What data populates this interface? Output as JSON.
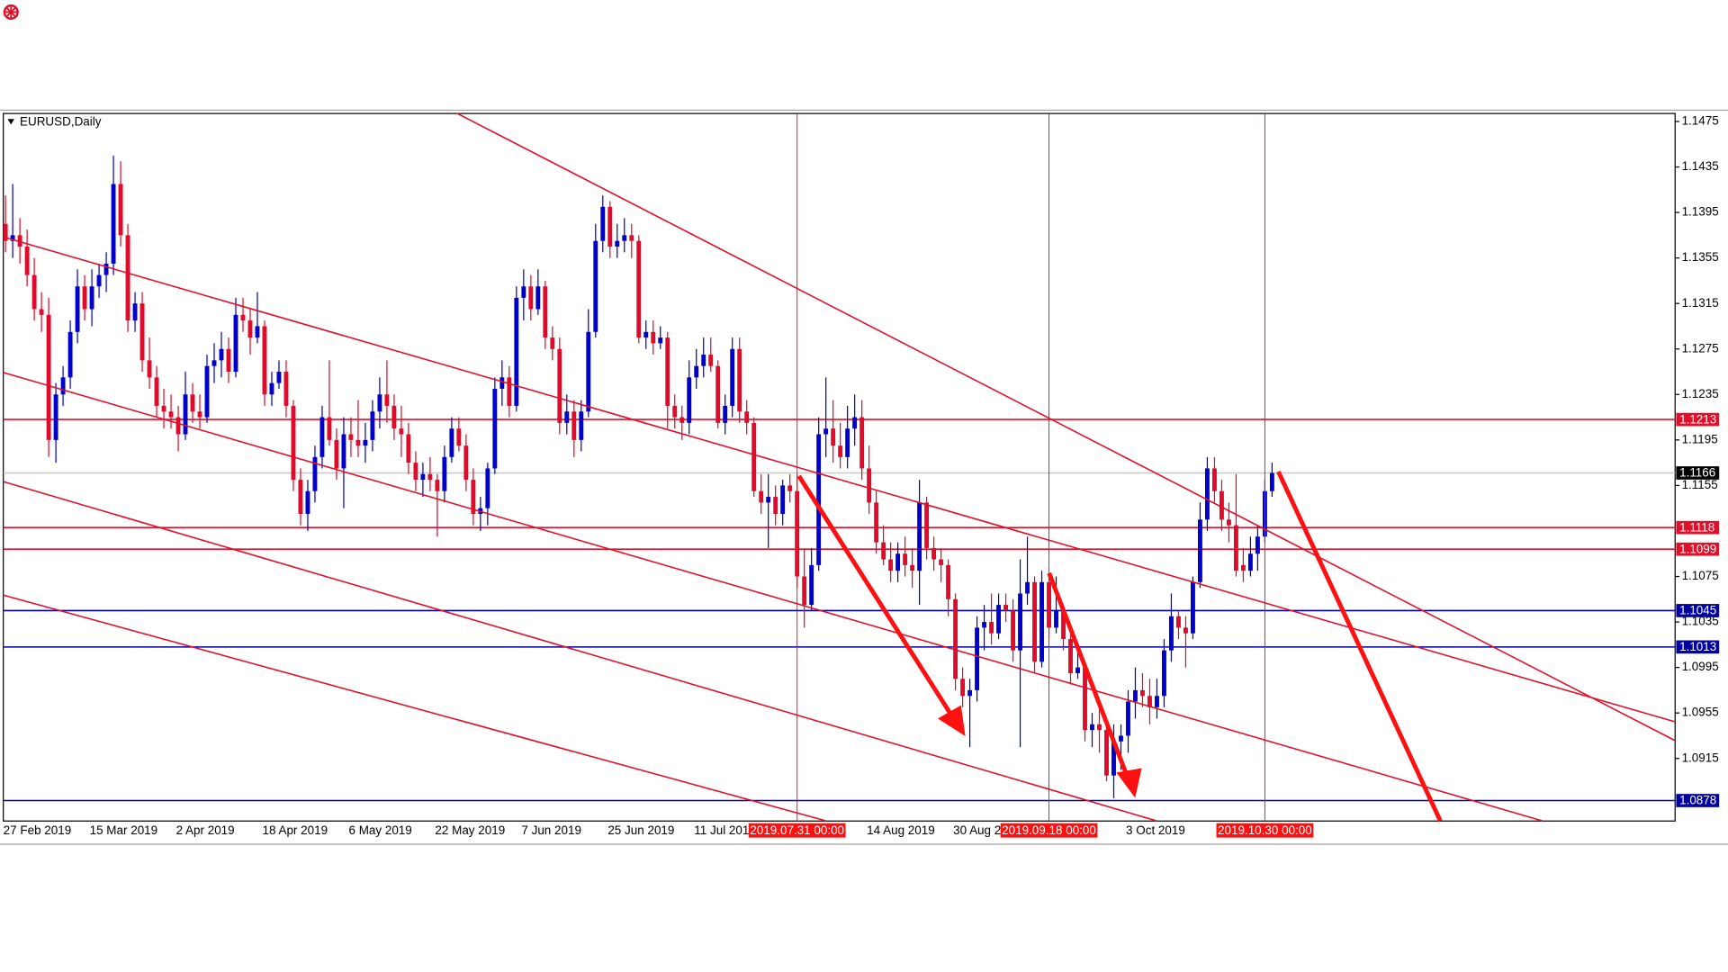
{
  "chart_data": {
    "type": "candlestick",
    "title": "EURUSD,Daily",
    "up_color": "#0000cc",
    "down_color": "#e00a2a",
    "grid": false,
    "ylim": [
      1.086,
      1.1482
    ],
    "yticks": [
      1.1475,
      1.1435,
      1.1395,
      1.1355,
      1.1315,
      1.1275,
      1.1235,
      1.1195,
      1.1155,
      1.1075,
      1.1035,
      1.0995,
      1.0955,
      1.0915
    ],
    "hlines": [
      {
        "value": 1.1213,
        "color": "#e0102a"
      },
      {
        "value": 1.1166,
        "color": "#000000",
        "line_color": "#c8c8c8"
      },
      {
        "value": 1.1118,
        "color": "#e0102a"
      },
      {
        "value": 1.1099,
        "color": "#e0102a"
      },
      {
        "value": 1.1045,
        "color": "#0000a0"
      },
      {
        "value": 1.1013,
        "color": "#0000a0"
      },
      {
        "value": 1.0878,
        "color": "#0000a0"
      }
    ],
    "vlines": [
      {
        "index": 110,
        "label": "2019.07.31 00:00",
        "color": "#ff1010"
      },
      {
        "index": 145,
        "label": "2019.09.18 00:00",
        "color": "#ff1010"
      },
      {
        "index": 175,
        "label": "2019.10.30 00:00",
        "color": "#ff1010"
      }
    ],
    "categories": [
      "27 Feb 2019",
      null,
      null,
      null,
      null,
      null,
      null,
      null,
      null,
      null,
      null,
      null,
      "15 Mar 2019",
      null,
      null,
      null,
      null,
      null,
      null,
      null,
      null,
      null,
      null,
      null,
      "2 Apr 2019",
      null,
      null,
      null,
      null,
      null,
      null,
      null,
      null,
      null,
      null,
      null,
      "18 Apr 2019",
      null,
      null,
      null,
      null,
      null,
      null,
      null,
      null,
      null,
      null,
      null,
      "6 May 2019",
      null,
      null,
      null,
      null,
      null,
      null,
      null,
      null,
      null,
      null,
      null,
      "22 May 2019",
      null,
      null,
      null,
      null,
      null,
      null,
      null,
      null,
      null,
      null,
      null,
      "7 Jun 2019",
      null,
      null,
      null,
      null,
      null,
      null,
      null,
      null,
      null,
      null,
      null,
      "25 Jun 2019",
      null,
      null,
      null,
      null,
      null,
      null,
      null,
      null,
      null,
      null,
      null,
      "11 Jul 2019",
      null,
      null,
      null,
      null,
      null,
      null,
      null,
      null,
      null,
      null,
      null,
      null,
      null,
      null,
      null,
      null,
      null,
      null,
      null,
      null,
      null,
      null,
      null,
      "14 Aug 2019",
      null,
      null,
      null,
      null,
      null,
      null,
      null,
      null,
      null,
      null,
      null,
      "30 Aug 2019",
      null,
      null,
      null,
      null,
      null,
      null,
      null,
      null,
      null,
      null,
      null,
      null,
      null,
      null,
      null,
      null,
      null,
      null,
      null,
      null,
      null,
      null,
      null,
      "3 Oct 2019",
      null,
      null,
      null,
      null,
      null,
      null,
      null,
      null,
      null,
      null,
      null,
      null,
      null,
      null,
      null,
      null,
      null,
      null,
      null,
      null
    ],
    "ohlc": [
      [
        1.1385,
        1.141,
        1.136,
        1.137
      ],
      [
        1.137,
        1.142,
        1.1355,
        1.1375
      ],
      [
        1.1375,
        1.139,
        1.135,
        1.1365
      ],
      [
        1.1365,
        1.138,
        1.133,
        1.134
      ],
      [
        1.134,
        1.1355,
        1.13,
        1.131
      ],
      [
        1.131,
        1.1325,
        1.129,
        1.1305
      ],
      [
        1.1305,
        1.132,
        1.118,
        1.1195
      ],
      [
        1.1195,
        1.1245,
        1.1175,
        1.1235
      ],
      [
        1.1235,
        1.126,
        1.1225,
        1.125
      ],
      [
        1.125,
        1.13,
        1.124,
        1.129
      ],
      [
        1.129,
        1.1345,
        1.128,
        1.133
      ],
      [
        1.133,
        1.134,
        1.13,
        1.131
      ],
      [
        1.131,
        1.1345,
        1.1295,
        1.133
      ],
      [
        1.133,
        1.135,
        1.132,
        1.134
      ],
      [
        1.134,
        1.136,
        1.1325,
        1.135
      ],
      [
        1.135,
        1.1445,
        1.134,
        1.142
      ],
      [
        1.142,
        1.144,
        1.1365,
        1.1375
      ],
      [
        1.1375,
        1.1385,
        1.129,
        1.13
      ],
      [
        1.13,
        1.1325,
        1.129,
        1.1315
      ],
      [
        1.1315,
        1.1325,
        1.1255,
        1.1265
      ],
      [
        1.1265,
        1.1285,
        1.124,
        1.125
      ],
      [
        1.125,
        1.126,
        1.1215,
        1.1225
      ],
      [
        1.1225,
        1.124,
        1.1205,
        1.122
      ],
      [
        1.122,
        1.1235,
        1.1205,
        1.1215
      ],
      [
        1.1215,
        1.1225,
        1.1185,
        1.12
      ],
      [
        1.12,
        1.1255,
        1.1195,
        1.1235
      ],
      [
        1.1235,
        1.1245,
        1.121,
        1.122
      ],
      [
        1.122,
        1.1235,
        1.1205,
        1.1215
      ],
      [
        1.1215,
        1.127,
        1.121,
        1.126
      ],
      [
        1.126,
        1.128,
        1.1245,
        1.1265
      ],
      [
        1.1265,
        1.129,
        1.125,
        1.1275
      ],
      [
        1.1275,
        1.1285,
        1.1245,
        1.1255
      ],
      [
        1.1255,
        1.132,
        1.125,
        1.1305
      ],
      [
        1.1305,
        1.132,
        1.129,
        1.13
      ],
      [
        1.13,
        1.131,
        1.127,
        1.1285
      ],
      [
        1.1285,
        1.1325,
        1.128,
        1.1295
      ],
      [
        1.1295,
        1.13,
        1.1225,
        1.1235
      ],
      [
        1.1235,
        1.1255,
        1.1225,
        1.1245
      ],
      [
        1.1245,
        1.1265,
        1.124,
        1.1255
      ],
      [
        1.1255,
        1.1265,
        1.1215,
        1.1225
      ],
      [
        1.1225,
        1.123,
        1.115,
        1.116
      ],
      [
        1.116,
        1.117,
        1.112,
        1.113
      ],
      [
        1.113,
        1.116,
        1.1115,
        1.115
      ],
      [
        1.115,
        1.119,
        1.114,
        1.118
      ],
      [
        1.118,
        1.1225,
        1.117,
        1.1215
      ],
      [
        1.1215,
        1.1265,
        1.119,
        1.1195
      ],
      [
        1.1195,
        1.1205,
        1.116,
        1.117
      ],
      [
        1.117,
        1.1215,
        1.1135,
        1.12
      ],
      [
        1.12,
        1.1215,
        1.118,
        1.1195
      ],
      [
        1.1195,
        1.123,
        1.118,
        1.119
      ],
      [
        1.119,
        1.121,
        1.1175,
        1.1195
      ],
      [
        1.1195,
        1.123,
        1.1185,
        1.122
      ],
      [
        1.122,
        1.125,
        1.1205,
        1.1235
      ],
      [
        1.1235,
        1.1265,
        1.121,
        1.1225
      ],
      [
        1.1225,
        1.1235,
        1.1195,
        1.1205
      ],
      [
        1.1205,
        1.1225,
        1.118,
        1.12
      ],
      [
        1.12,
        1.121,
        1.1165,
        1.1175
      ],
      [
        1.1175,
        1.1185,
        1.115,
        1.116
      ],
      [
        1.116,
        1.1175,
        1.1145,
        1.1165
      ],
      [
        1.1165,
        1.118,
        1.115,
        1.116
      ],
      [
        1.116,
        1.1165,
        1.111,
        1.115
      ],
      [
        1.115,
        1.119,
        1.114,
        1.118
      ],
      [
        1.118,
        1.1215,
        1.1175,
        1.1205
      ],
      [
        1.1205,
        1.1215,
        1.1185,
        1.119
      ],
      [
        1.119,
        1.12,
        1.115,
        1.116
      ],
      [
        1.116,
        1.117,
        1.112,
        1.113
      ],
      [
        1.113,
        1.1145,
        1.1115,
        1.1135
      ],
      [
        1.1135,
        1.1175,
        1.112,
        1.117
      ],
      [
        1.117,
        1.125,
        1.1165,
        1.124
      ],
      [
        1.124,
        1.1265,
        1.1225,
        1.125
      ],
      [
        1.125,
        1.126,
        1.1215,
        1.1225
      ],
      [
        1.1225,
        1.133,
        1.122,
        1.132
      ],
      [
        1.132,
        1.1345,
        1.13,
        1.133
      ],
      [
        1.133,
        1.134,
        1.13,
        1.131
      ],
      [
        1.131,
        1.1345,
        1.1305,
        1.133
      ],
      [
        1.133,
        1.1335,
        1.1275,
        1.1285
      ],
      [
        1.1285,
        1.1295,
        1.1265,
        1.1275
      ],
      [
        1.1275,
        1.1285,
        1.12,
        1.121
      ],
      [
        1.121,
        1.1235,
        1.12,
        1.122
      ],
      [
        1.122,
        1.123,
        1.118,
        1.1195
      ],
      [
        1.1195,
        1.123,
        1.1185,
        1.122
      ],
      [
        1.122,
        1.131,
        1.1215,
        1.129
      ],
      [
        1.129,
        1.1385,
        1.1285,
        1.137
      ],
      [
        1.137,
        1.141,
        1.136,
        1.14
      ],
      [
        1.14,
        1.1405,
        1.1355,
        1.1365
      ],
      [
        1.1365,
        1.1385,
        1.1355,
        1.137
      ],
      [
        1.137,
        1.139,
        1.136,
        1.1375
      ],
      [
        1.1375,
        1.1385,
        1.1355,
        1.137
      ],
      [
        1.137,
        1.1375,
        1.128,
        1.1285
      ],
      [
        1.1285,
        1.13,
        1.1275,
        1.129
      ],
      [
        1.129,
        1.13,
        1.127,
        1.128
      ],
      [
        1.128,
        1.1295,
        1.1275,
        1.1285
      ],
      [
        1.1285,
        1.129,
        1.1205,
        1.1225
      ],
      [
        1.1225,
        1.1235,
        1.1205,
        1.1215
      ],
      [
        1.1215,
        1.1225,
        1.1195,
        1.121
      ],
      [
        1.121,
        1.1265,
        1.12,
        1.125
      ],
      [
        1.125,
        1.1275,
        1.124,
        1.126
      ],
      [
        1.126,
        1.1285,
        1.125,
        1.127
      ],
      [
        1.127,
        1.1285,
        1.1255,
        1.126
      ],
      [
        1.126,
        1.1265,
        1.1205,
        1.121
      ],
      [
        1.121,
        1.1235,
        1.12,
        1.1225
      ],
      [
        1.1225,
        1.1285,
        1.1215,
        1.1275
      ],
      [
        1.1275,
        1.1285,
        1.121,
        1.122
      ],
      [
        1.122,
        1.123,
        1.12,
        1.121
      ],
      [
        1.121,
        1.1215,
        1.1145,
        1.115
      ],
      [
        1.115,
        1.1165,
        1.113,
        1.114
      ],
      [
        1.114,
        1.1165,
        1.11,
        1.1145
      ],
      [
        1.1145,
        1.1155,
        1.112,
        1.113
      ],
      [
        1.113,
        1.116,
        1.112,
        1.1155
      ],
      [
        1.1155,
        1.1165,
        1.114,
        1.115
      ],
      [
        1.115,
        1.1165,
        1.1065,
        1.1075
      ],
      [
        1.1075,
        1.11,
        1.103,
        1.105
      ],
      [
        1.105,
        1.11,
        1.1045,
        1.1085
      ],
      [
        1.1085,
        1.1215,
        1.108,
        1.12
      ],
      [
        1.12,
        1.125,
        1.118,
        1.1205
      ],
      [
        1.1205,
        1.123,
        1.1175,
        1.119
      ],
      [
        1.119,
        1.121,
        1.117,
        1.118
      ],
      [
        1.118,
        1.1225,
        1.117,
        1.1205
      ],
      [
        1.1205,
        1.1235,
        1.119,
        1.1215
      ],
      [
        1.1215,
        1.123,
        1.116,
        1.117
      ],
      [
        1.117,
        1.119,
        1.113,
        1.114
      ],
      [
        1.114,
        1.115,
        1.1095,
        1.1105
      ],
      [
        1.1105,
        1.112,
        1.1085,
        1.109
      ],
      [
        1.109,
        1.1105,
        1.107,
        1.108
      ],
      [
        1.108,
        1.1105,
        1.107,
        1.1095
      ],
      [
        1.1095,
        1.111,
        1.1075,
        1.1085
      ],
      [
        1.1085,
        1.11,
        1.1065,
        1.108
      ],
      [
        1.108,
        1.116,
        1.105,
        1.114
      ],
      [
        1.114,
        1.1145,
        1.109,
        1.11
      ],
      [
        1.11,
        1.111,
        1.108,
        1.109
      ],
      [
        1.109,
        1.11,
        1.107,
        1.1085
      ],
      [
        1.1085,
        1.109,
        1.104,
        1.1055
      ],
      [
        1.1055,
        1.106,
        1.0975,
        1.0985
      ],
      [
        1.0985,
        1.0995,
        1.096,
        1.097
      ],
      [
        1.097,
        1.0985,
        1.0925,
        1.0975
      ],
      [
        1.0975,
        1.104,
        1.0965,
        1.103
      ],
      [
        1.103,
        1.105,
        1.101,
        1.1035
      ],
      [
        1.1035,
        1.106,
        1.1015,
        1.1025
      ],
      [
        1.1025,
        1.106,
        1.102,
        1.105
      ],
      [
        1.105,
        1.106,
        1.1035,
        1.1045
      ],
      [
        1.1045,
        1.1055,
        1.1,
        1.101
      ],
      [
        1.101,
        1.109,
        1.0925,
        1.106
      ],
      [
        1.106,
        1.111,
        1.105,
        1.107
      ],
      [
        1.107,
        1.1075,
        1.099,
        1.1
      ],
      [
        1.1,
        1.108,
        1.0995,
        1.107
      ],
      [
        1.107,
        1.1075,
        1.102,
        1.103
      ],
      [
        1.103,
        1.1075,
        1.1025,
        1.1045
      ],
      [
        1.1045,
        1.105,
        1.101,
        1.102
      ],
      [
        1.102,
        1.1025,
        1.098,
        1.099
      ],
      [
        1.099,
        1.1015,
        1.0985,
        1.0995
      ],
      [
        1.0995,
        1.1,
        1.093,
        1.094
      ],
      [
        1.094,
        1.0955,
        1.0925,
        1.0945
      ],
      [
        1.0945,
        1.096,
        1.092,
        1.094
      ],
      [
        1.094,
        1.0945,
        1.0895,
        1.09
      ],
      [
        1.09,
        1.0945,
        1.088,
        1.093
      ],
      [
        1.093,
        1.0945,
        1.0905,
        1.0935
      ],
      [
        1.0935,
        1.0975,
        1.092,
        1.0965
      ],
      [
        1.0965,
        1.0995,
        1.095,
        1.0975
      ],
      [
        1.0975,
        1.099,
        1.096,
        1.097
      ],
      [
        1.097,
        1.0985,
        1.0945,
        1.096
      ],
      [
        1.096,
        1.0985,
        1.095,
        1.097
      ],
      [
        1.097,
        1.102,
        1.096,
        1.101
      ],
      [
        1.101,
        1.106,
        1.1,
        1.104
      ],
      [
        1.104,
        1.1045,
        1.102,
        1.103
      ],
      [
        1.103,
        1.104,
        1.0995,
        1.1025
      ],
      [
        1.1025,
        1.1075,
        1.102,
        1.107
      ],
      [
        1.107,
        1.114,
        1.1065,
        1.1125
      ],
      [
        1.1125,
        1.118,
        1.1115,
        1.117
      ],
      [
        1.117,
        1.118,
        1.114,
        1.115
      ],
      [
        1.115,
        1.116,
        1.1115,
        1.1125
      ],
      [
        1.1125,
        1.114,
        1.1105,
        1.112
      ],
      [
        1.112,
        1.1165,
        1.1075,
        1.108
      ],
      [
        1.1085,
        1.11,
        1.107,
        1.108
      ],
      [
        1.108,
        1.111,
        1.1075,
        1.1095
      ],
      [
        1.1095,
        1.112,
        1.108,
        1.111
      ],
      [
        1.111,
        1.116,
        1.1105,
        1.115
      ],
      [
        1.115,
        1.1175,
        1.1145,
        1.1166
      ]
    ]
  }
}
